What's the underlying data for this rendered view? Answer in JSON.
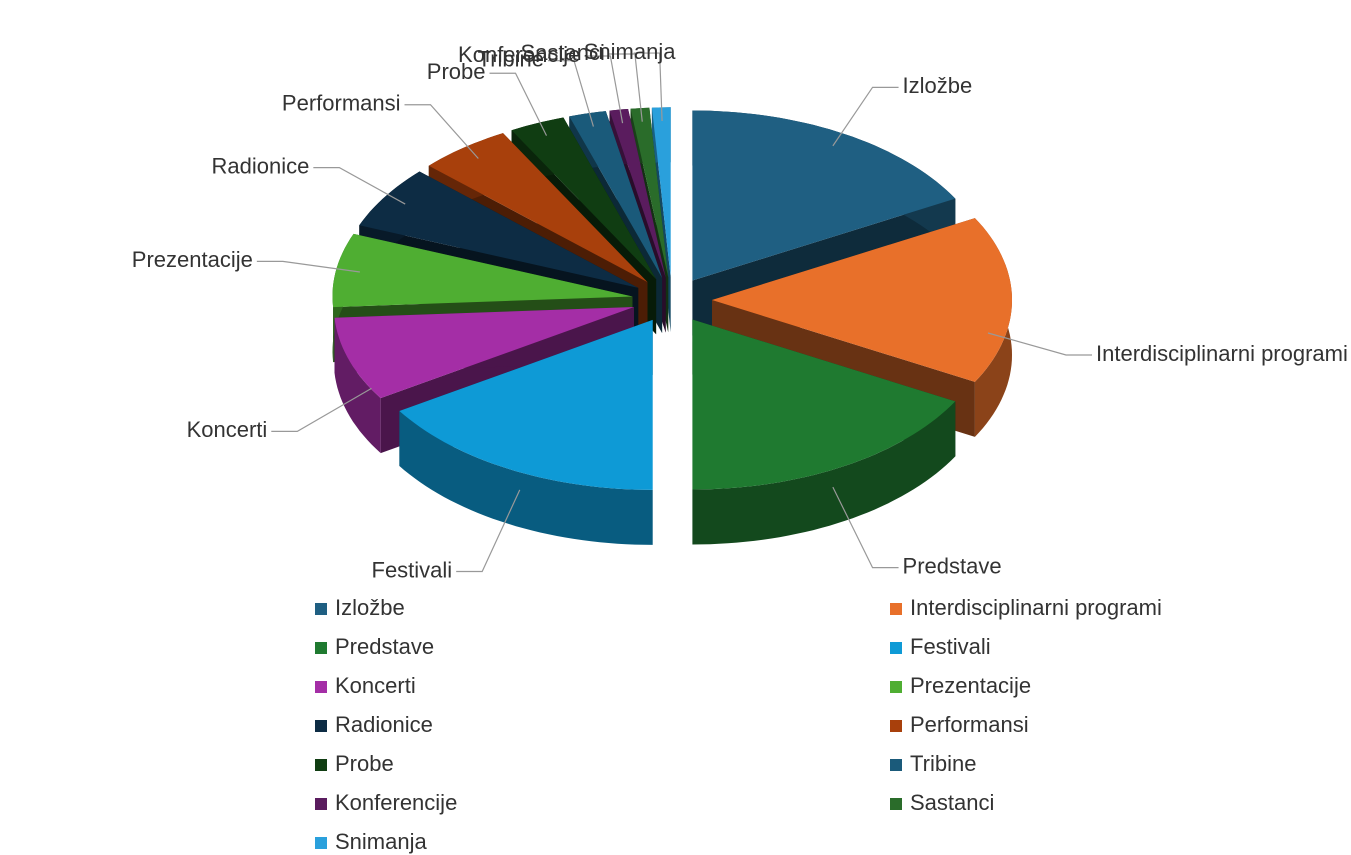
{
  "chart_data": {
    "type": "pie3d",
    "categories": [
      "Izložbe",
      "Interdisciplinarni programi",
      "Predstave",
      "Festivali",
      "Koncerti",
      "Prezentacije",
      "Radionice",
      "Performansi",
      "Probe",
      "Tribine",
      "Konferencije",
      "Sastanci",
      "Snimanja"
    ],
    "values": [
      17,
      16,
      17,
      16,
      8,
      7,
      6,
      5,
      3,
      2,
      1,
      1,
      1
    ],
    "colors": [
      "#1f5f82",
      "#e8702a",
      "#1f7a30",
      "#0e9ad6",
      "#a42ea6",
      "#4fae32",
      "#0d2c44",
      "#a8400c",
      "#103d12",
      "#1a5a7a",
      "#5a1c5e",
      "#2a6c2a",
      "#2aa0dc"
    ],
    "legend": "bottom"
  }
}
